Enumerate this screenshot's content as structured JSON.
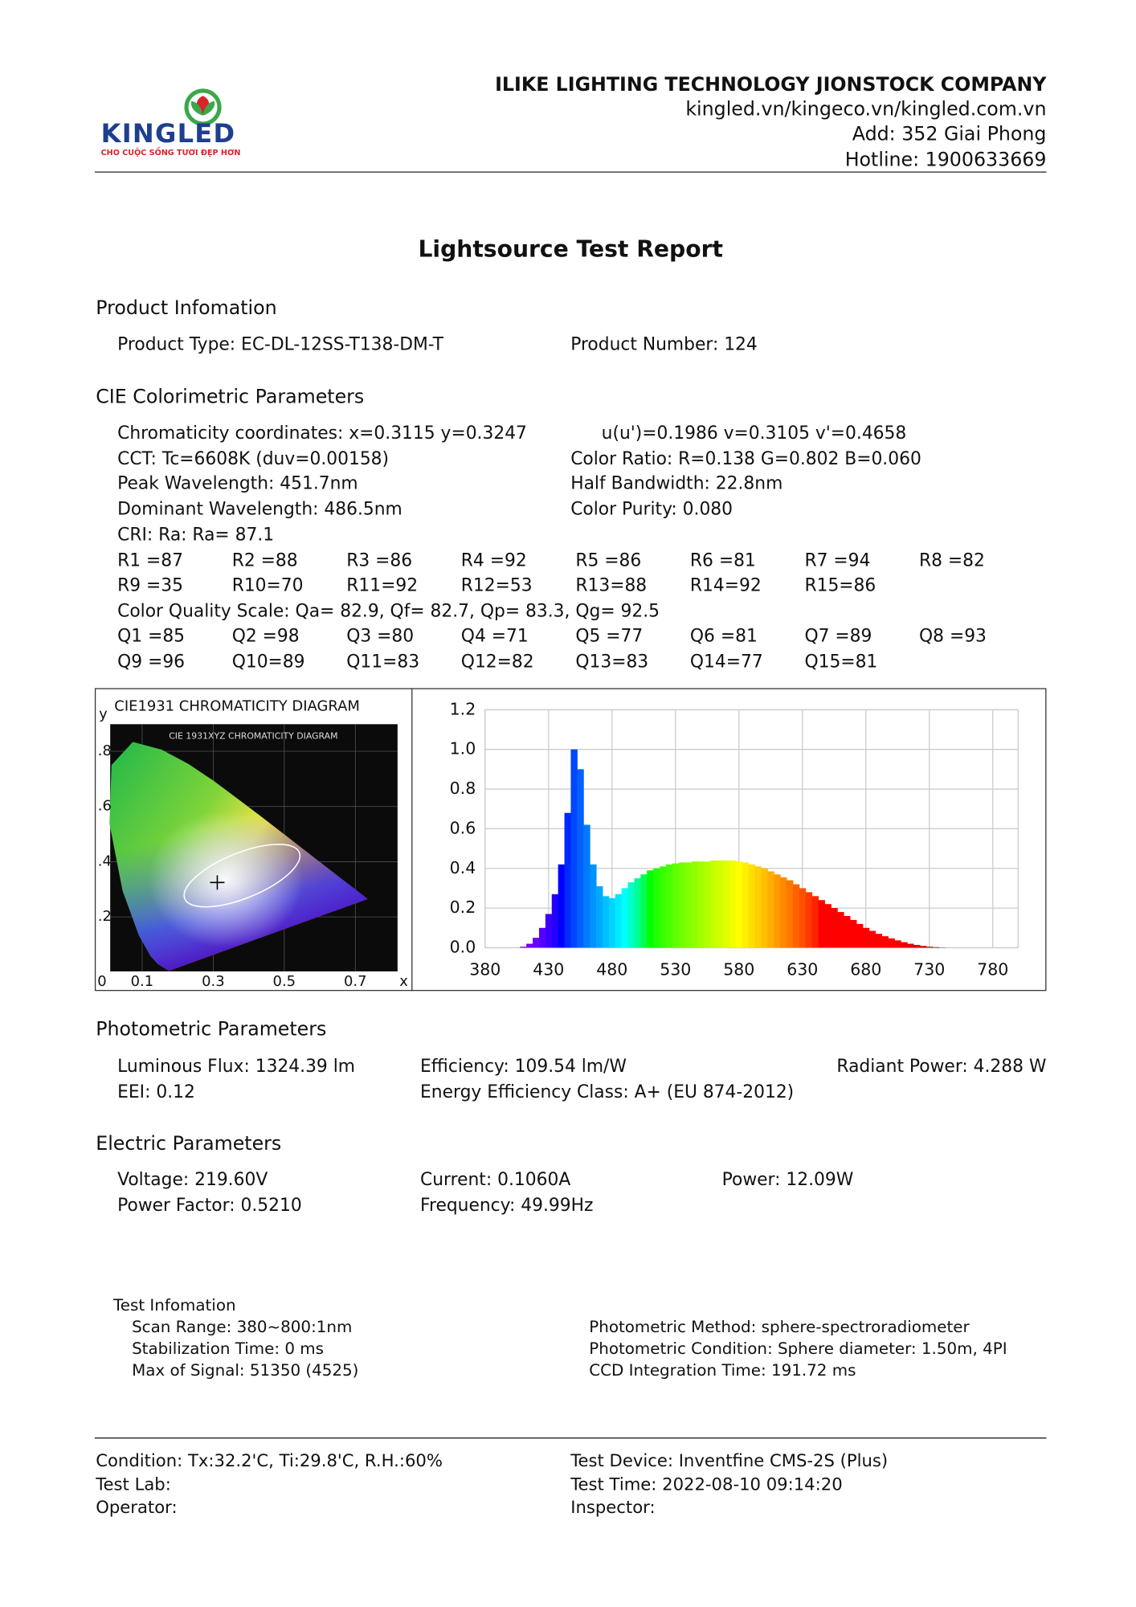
{
  "header": {
    "logo_name": "KINGLED",
    "logo_tagline": "CHO CUỘC SỐNG TƯƠI ĐẸP HƠN",
    "company": "ILIKE LIGHTING TECHNOLOGY JIONSTOCK COMPANY",
    "website": "kingled.vn/kingeco.vn/kingled.com.vn",
    "address": "Add: 352 Giai Phong",
    "hotline": "Hotline: 1900633669"
  },
  "title": "Lightsource Test Report",
  "product": {
    "heading": "Product Infomation",
    "type": "Product Type: EC-DL-12SS-T138-DM-T",
    "number": "Product Number: 124"
  },
  "cie": {
    "heading": "CIE Colorimetric Parameters",
    "chromaticity": "Chromaticity coordinates: x=0.3115 y=0.3247",
    "uv": "u(u')=0.1986 v=0.3105 v'=0.4658",
    "cct": "CCT: Tc=6608K (duv=0.00158)",
    "color_ratio": "Color Ratio: R=0.138  G=0.802  B=0.060",
    "peak": "Peak Wavelength: 451.7nm",
    "half_bandwidth": "Half Bandwidth: 22.8nm",
    "dominant": "Dominant Wavelength: 486.5nm",
    "purity": "Color Purity: 0.080",
    "cri": "CRI: Ra: Ra= 87.1",
    "r_values": [
      "R1 =87",
      "R2 =88",
      "R3 =86",
      "R4 =92",
      "R5 =86",
      "R6 =81",
      "R7 =94",
      "R8 =82",
      "R9 =35",
      "R10=70",
      "R11=92",
      "R12=53",
      "R13=88",
      "R14=92",
      "R15=86"
    ],
    "cqs": "Color Quality Scale: Qa= 82.9, Qf= 82.7, Qp= 83.3, Qg= 92.5",
    "q_values": [
      "Q1 =85",
      "Q2 =98",
      "Q3 =80",
      "Q4 =71",
      "Q5 =77",
      "Q6 =81",
      "Q7 =89",
      "Q8 =93",
      "Q9 =96",
      "Q10=89",
      "Q11=83",
      "Q12=82",
      "Q13=83",
      "Q14=77",
      "Q15=81"
    ]
  },
  "chart_data": [
    {
      "type": "scatter",
      "title": "CIE1931 CHROMATICITY DIAGRAM",
      "image_title": "CIE 1931XYZ CHROMATICITY DIAGRAM",
      "x_label": "x",
      "y_label": "y",
      "x": [
        0.3115
      ],
      "y": [
        0.3247
      ],
      "xlim": [
        0,
        0.8
      ],
      "ylim": [
        0,
        0.9
      ],
      "xticks": [
        0,
        0.1,
        0.3,
        0.5,
        0.7
      ],
      "yticks": [
        {
          "value": 0.2,
          "label": ".2"
        },
        {
          "value": 0.4,
          "label": ".4"
        },
        {
          "value": 0.6,
          "label": ".6"
        },
        {
          "value": 0.8,
          "label": ".8"
        }
      ],
      "grid": true
    },
    {
      "type": "area",
      "x": [
        400,
        405,
        410,
        415,
        420,
        425,
        430,
        435,
        440,
        445,
        450,
        455,
        460,
        465,
        470,
        475,
        480,
        485,
        490,
        495,
        500,
        505,
        510,
        515,
        520,
        525,
        530,
        535,
        540,
        545,
        550,
        555,
        560,
        565,
        570,
        575,
        580,
        585,
        590,
        595,
        600,
        605,
        610,
        615,
        620,
        625,
        630,
        635,
        640,
        645,
        650,
        655,
        660,
        665,
        670,
        675,
        680,
        685,
        690,
        695,
        700,
        705,
        710,
        715,
        720,
        725,
        730,
        735,
        740,
        745,
        750
      ],
      "values": [
        0,
        0,
        0.005,
        0.02,
        0.05,
        0.1,
        0.17,
        0.27,
        0.42,
        0.68,
        1.0,
        0.9,
        0.62,
        0.42,
        0.31,
        0.26,
        0.25,
        0.27,
        0.3,
        0.33,
        0.35,
        0.37,
        0.39,
        0.4,
        0.41,
        0.42,
        0.425,
        0.43,
        0.43,
        0.435,
        0.435,
        0.435,
        0.44,
        0.44,
        0.44,
        0.44,
        0.435,
        0.43,
        0.42,
        0.41,
        0.4,
        0.385,
        0.37,
        0.355,
        0.34,
        0.32,
        0.3,
        0.28,
        0.26,
        0.24,
        0.22,
        0.2,
        0.18,
        0.16,
        0.14,
        0.12,
        0.1,
        0.085,
        0.07,
        0.058,
        0.047,
        0.037,
        0.028,
        0.02,
        0.014,
        0.009,
        0.005,
        0.003,
        0.001,
        0,
        0
      ],
      "xlim": [
        380,
        800
      ],
      "ylim": [
        0,
        1.2
      ],
      "xticks": [
        380,
        430,
        480,
        530,
        580,
        630,
        680,
        730,
        780
      ],
      "yticks": [
        {
          "value": 0,
          "label": "0.0"
        },
        0.2,
        0.4,
        0.6,
        0.8,
        {
          "value": 1,
          "label": "1.0"
        },
        1.2
      ],
      "grid": true
    }
  ],
  "photometric": {
    "heading": "Photometric Parameters",
    "flux": "Luminous Flux: 1324.39 lm",
    "efficiency": "Efficiency: 109.54 lm/W",
    "radiant": "Radiant Power: 4.288 W",
    "eei": "EEI:  0.12",
    "class": "Energy Efficiency Class: A+ (EU 874-2012)"
  },
  "electric": {
    "heading": "Electric Parameters",
    "voltage": "Voltage: 219.60V",
    "current": "Current: 0.1060A",
    "power": "Power: 12.09W",
    "pf": "Power Factor: 0.5210",
    "frequency": "Frequency: 49.99Hz"
  },
  "test_info": {
    "heading": "Test Infomation",
    "scan": "Scan Range: 380~800:1nm",
    "stabilization": "Stabilization Time: 0 ms",
    "max_signal": "Max of Signal: 51350 (4525)",
    "method": "Photometric Method: sphere-spectroradiometer",
    "condition": "Photometric Condition: Sphere diameter: 1.50m, 4PI",
    "ccd": "CCD Integration Time: 191.72 ms"
  },
  "footer": {
    "condition": "Condition: Tx:32.2'C, Ti:29.8'C, R.H.:60%",
    "device": "Test Device: Inventfine CMS-2S (Plus)",
    "lab": "Test Lab:",
    "time": "Test Time: 2022-08-10 09:14:20",
    "operator": "Operator:",
    "inspector": "Inspector:"
  }
}
